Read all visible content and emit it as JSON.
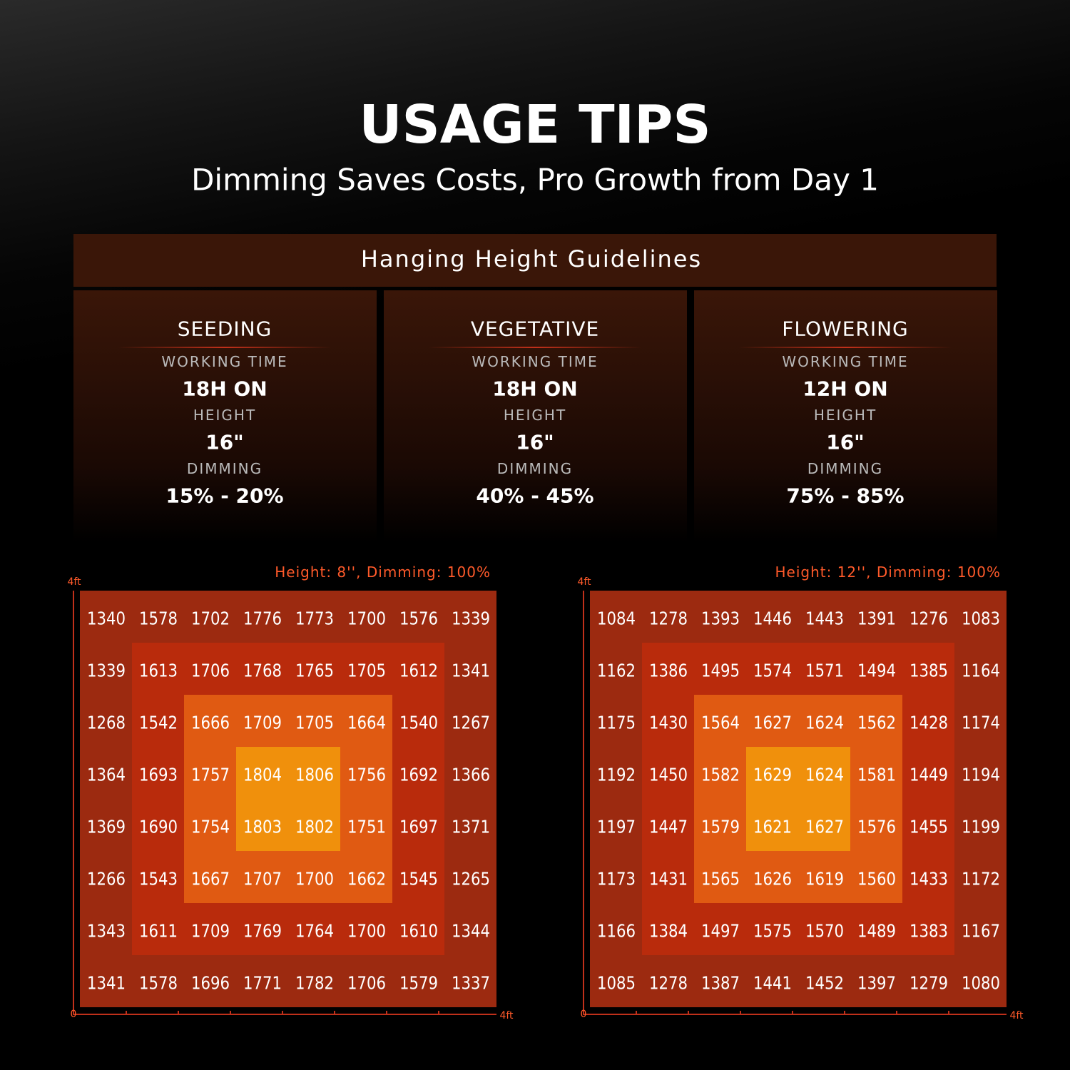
{
  "header": {
    "title": "USAGE TIPS",
    "subtitle": "Dimming Saves Costs, Pro Growth from Day 1"
  },
  "guidelines": {
    "title": "Hanging Height Guidelines",
    "stages": [
      {
        "name": "SEEDING",
        "working_time_label": "WORKING TIME",
        "working_time": "18H ON",
        "height_label": "HEIGHT",
        "height": "16\"",
        "dimming_label": "DIMMING",
        "dimming": "15% - 20%"
      },
      {
        "name": "VEGETATIVE",
        "working_time_label": "WORKING TIME",
        "working_time": "18H ON",
        "height_label": "HEIGHT",
        "height": "16\"",
        "dimming_label": "DIMMING",
        "dimming": "40% - 45%"
      },
      {
        "name": "FLOWERING",
        "working_time_label": "WORKING TIME",
        "working_time": "12H ON",
        "height_label": "HEIGHT",
        "height": "16\"",
        "dimming_label": "DIMMING",
        "dimming": "75% - 85%"
      }
    ]
  },
  "maps": [
    {
      "caption": "Height: 8'', Dimming: 100%",
      "y_max_label": "4ft",
      "origin_label": "0",
      "x_max_label": "4ft",
      "rows": [
        [
          1340,
          1578,
          1702,
          1776,
          1773,
          1700,
          1576,
          1339
        ],
        [
          1339,
          1613,
          1706,
          1768,
          1765,
          1705,
          1612,
          1341
        ],
        [
          1268,
          1542,
          1666,
          1709,
          1705,
          1664,
          1540,
          1267
        ],
        [
          1364,
          1693,
          1757,
          1804,
          1806,
          1756,
          1692,
          1366
        ],
        [
          1369,
          1690,
          1754,
          1803,
          1802,
          1751,
          1697,
          1371
        ],
        [
          1266,
          1543,
          1667,
          1707,
          1700,
          1662,
          1545,
          1265
        ],
        [
          1343,
          1611,
          1709,
          1769,
          1764,
          1700,
          1610,
          1344
        ],
        [
          1341,
          1578,
          1696,
          1771,
          1782,
          1706,
          1579,
          1337
        ]
      ]
    },
    {
      "caption": "Height: 12'', Dimming: 100%",
      "y_max_label": "4ft",
      "origin_label": "0",
      "x_max_label": "4ft",
      "rows": [
        [
          1084,
          1278,
          1393,
          1446,
          1443,
          1391,
          1276,
          1083
        ],
        [
          1162,
          1386,
          1495,
          1574,
          1571,
          1494,
          1385,
          1164
        ],
        [
          1175,
          1430,
          1564,
          1627,
          1624,
          1562,
          1428,
          1174
        ],
        [
          1192,
          1450,
          1582,
          1629,
          1624,
          1581,
          1449,
          1194
        ],
        [
          1197,
          1447,
          1579,
          1621,
          1627,
          1576,
          1455,
          1199
        ],
        [
          1173,
          1431,
          1565,
          1626,
          1619,
          1560,
          1433,
          1172
        ],
        [
          1166,
          1384,
          1497,
          1575,
          1570,
          1489,
          1383,
          1167
        ],
        [
          1085,
          1278,
          1387,
          1441,
          1452,
          1397,
          1279,
          1080
        ]
      ]
    }
  ]
}
